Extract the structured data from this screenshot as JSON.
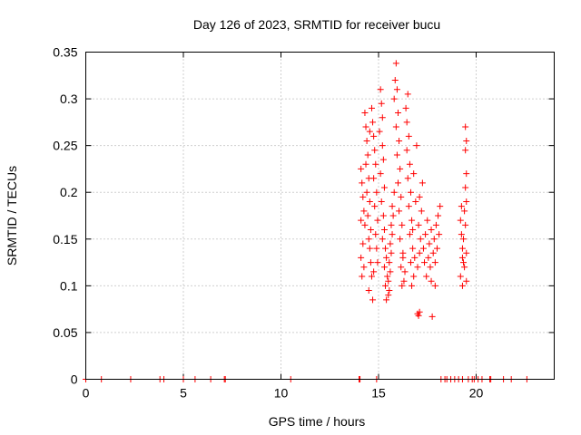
{
  "chart_data": {
    "type": "scatter",
    "title": "Day 126 of 2023, SRMTID for receiver bucu",
    "xlabel": "GPS time / hours",
    "ylabel": "SRMTID / TECUs",
    "xlim": [
      0,
      24
    ],
    "ylim": [
      0,
      0.35
    ],
    "xticks": [
      0,
      5,
      10,
      15,
      20
    ],
    "xtick_labels": [
      "0",
      "5",
      "10",
      "15",
      "20"
    ],
    "yticks": [
      0,
      0.05,
      0.1,
      0.15,
      0.2,
      0.25,
      0.3,
      0.35
    ],
    "ytick_labels": [
      "0",
      "0.05",
      "0.1",
      "0.15",
      "0.2",
      "0.25",
      "0.3",
      "0.35"
    ],
    "grid": true,
    "marker": "+",
    "series": [
      {
        "name": "SRMTID",
        "color": "#ff0000",
        "points": [
          [
            0.0,
            0
          ],
          [
            0.8,
            0
          ],
          [
            2.3,
            0
          ],
          [
            3.8,
            0
          ],
          [
            4.0,
            0
          ],
          [
            5.0,
            0
          ],
          [
            5.6,
            0
          ],
          [
            6.4,
            0
          ],
          [
            7.1,
            0
          ],
          [
            7.15,
            0
          ],
          [
            10.5,
            0
          ],
          [
            14.0,
            0
          ],
          [
            14.05,
            0
          ],
          [
            14.9,
            0
          ],
          [
            18.2,
            0
          ],
          [
            18.4,
            0
          ],
          [
            18.5,
            0
          ],
          [
            18.7,
            0
          ],
          [
            18.9,
            0
          ],
          [
            19.1,
            0
          ],
          [
            19.3,
            0
          ],
          [
            19.6,
            0
          ],
          [
            19.8,
            0
          ],
          [
            19.9,
            0
          ],
          [
            20.1,
            0
          ],
          [
            20.3,
            0
          ],
          [
            20.7,
            0
          ],
          [
            20.75,
            0
          ],
          [
            21.4,
            0
          ],
          [
            21.8,
            0
          ],
          [
            22.6,
            0
          ],
          [
            14.1,
            0.225
          ],
          [
            14.15,
            0.21
          ],
          [
            14.2,
            0.195
          ],
          [
            14.25,
            0.18
          ],
          [
            14.1,
            0.17
          ],
          [
            14.3,
            0.165
          ],
          [
            14.2,
            0.145
          ],
          [
            14.1,
            0.13
          ],
          [
            14.25,
            0.12
          ],
          [
            14.15,
            0.11
          ],
          [
            14.3,
            0.285
          ],
          [
            14.35,
            0.27
          ],
          [
            14.4,
            0.255
          ],
          [
            14.45,
            0.24
          ],
          [
            14.35,
            0.23
          ],
          [
            14.5,
            0.215
          ],
          [
            14.4,
            0.2
          ],
          [
            14.55,
            0.19
          ],
          [
            14.45,
            0.175
          ],
          [
            14.6,
            0.16
          ],
          [
            14.5,
            0.15
          ],
          [
            14.55,
            0.14
          ],
          [
            14.6,
            0.125
          ],
          [
            14.65,
            0.11
          ],
          [
            14.5,
            0.095
          ],
          [
            14.7,
            0.085
          ],
          [
            14.65,
            0.29
          ],
          [
            14.7,
            0.275
          ],
          [
            14.75,
            0.26
          ],
          [
            14.55,
            0.265
          ],
          [
            14.8,
            0.245
          ],
          [
            14.85,
            0.23
          ],
          [
            14.75,
            0.215
          ],
          [
            14.9,
            0.2
          ],
          [
            14.8,
            0.185
          ],
          [
            14.95,
            0.17
          ],
          [
            14.85,
            0.155
          ],
          [
            14.9,
            0.14
          ],
          [
            14.95,
            0.125
          ],
          [
            14.75,
            0.115
          ],
          [
            15.1,
            0.31
          ],
          [
            15.15,
            0.295
          ],
          [
            15.2,
            0.28
          ],
          [
            15.05,
            0.265
          ],
          [
            15.2,
            0.25
          ],
          [
            15.25,
            0.235
          ],
          [
            15.1,
            0.22
          ],
          [
            15.3,
            0.205
          ],
          [
            15.15,
            0.19
          ],
          [
            15.25,
            0.175
          ],
          [
            15.3,
            0.16
          ],
          [
            15.2,
            0.15
          ],
          [
            15.35,
            0.14
          ],
          [
            15.4,
            0.13
          ],
          [
            15.3,
            0.12
          ],
          [
            15.45,
            0.11
          ],
          [
            15.35,
            0.1
          ],
          [
            15.5,
            0.09
          ],
          [
            15.4,
            0.085
          ],
          [
            15.55,
            0.095
          ],
          [
            15.5,
            0.105
          ],
          [
            15.6,
            0.115
          ],
          [
            15.55,
            0.125
          ],
          [
            15.65,
            0.135
          ],
          [
            15.6,
            0.145
          ],
          [
            15.7,
            0.155
          ],
          [
            15.65,
            0.165
          ],
          [
            15.75,
            0.175
          ],
          [
            15.7,
            0.185
          ],
          [
            15.8,
            0.2
          ],
          [
            15.85,
            0.32
          ],
          [
            15.9,
            0.338
          ],
          [
            15.95,
            0.31
          ],
          [
            15.8,
            0.3
          ],
          [
            16.0,
            0.285
          ],
          [
            15.9,
            0.27
          ],
          [
            16.05,
            0.255
          ],
          [
            15.95,
            0.24
          ],
          [
            16.1,
            0.225
          ],
          [
            16.0,
            0.21
          ],
          [
            16.15,
            0.195
          ],
          [
            16.05,
            0.18
          ],
          [
            16.2,
            0.165
          ],
          [
            16.1,
            0.15
          ],
          [
            16.25,
            0.135
          ],
          [
            16.15,
            0.12
          ],
          [
            16.3,
            0.105
          ],
          [
            16.2,
            0.1
          ],
          [
            16.35,
            0.115
          ],
          [
            16.25,
            0.13
          ],
          [
            16.4,
            0.29
          ],
          [
            16.45,
            0.275
          ],
          [
            16.5,
            0.305
          ],
          [
            16.55,
            0.26
          ],
          [
            16.45,
            0.245
          ],
          [
            16.6,
            0.23
          ],
          [
            16.5,
            0.215
          ],
          [
            16.65,
            0.2
          ],
          [
            16.55,
            0.185
          ],
          [
            16.7,
            0.17
          ],
          [
            16.6,
            0.155
          ],
          [
            16.75,
            0.14
          ],
          [
            16.65,
            0.125
          ],
          [
            16.8,
            0.11
          ],
          [
            16.7,
            0.1
          ],
          [
            16.85,
            0.13
          ],
          [
            16.75,
            0.16
          ],
          [
            16.9,
            0.19
          ],
          [
            16.8,
            0.22
          ],
          [
            16.95,
            0.25
          ],
          [
            17.0,
            0.07
          ],
          [
            17.05,
            0.068
          ],
          [
            17.1,
            0.072
          ],
          [
            17.0,
            0.12
          ],
          [
            17.1,
            0.135
          ],
          [
            17.15,
            0.15
          ],
          [
            17.05,
            0.165
          ],
          [
            17.2,
            0.18
          ],
          [
            17.1,
            0.195
          ],
          [
            17.25,
            0.21
          ],
          [
            17.3,
            0.14
          ],
          [
            17.35,
            0.125
          ],
          [
            17.4,
            0.155
          ],
          [
            17.45,
            0.11
          ],
          [
            17.5,
            0.17
          ],
          [
            17.55,
            0.13
          ],
          [
            17.6,
            0.145
          ],
          [
            17.65,
            0.12
          ],
          [
            17.7,
            0.16
          ],
          [
            17.75,
            0.067
          ],
          [
            17.8,
            0.135
          ],
          [
            17.85,
            0.15
          ],
          [
            17.9,
            0.125
          ],
          [
            17.95,
            0.165
          ],
          [
            18.0,
            0.14
          ],
          [
            18.05,
            0.175
          ],
          [
            18.1,
            0.155
          ],
          [
            18.15,
            0.185
          ],
          [
            17.7,
            0.105
          ],
          [
            17.9,
            0.1
          ],
          [
            19.2,
            0.17
          ],
          [
            19.25,
            0.155
          ],
          [
            19.3,
            0.14
          ],
          [
            19.35,
            0.125
          ],
          [
            19.2,
            0.11
          ],
          [
            19.3,
            0.1
          ],
          [
            19.4,
            0.18
          ],
          [
            19.45,
            0.165
          ],
          [
            19.35,
            0.15
          ],
          [
            19.5,
            0.135
          ],
          [
            19.4,
            0.12
          ],
          [
            19.5,
            0.105
          ],
          [
            19.45,
            0.27
          ],
          [
            19.5,
            0.255
          ],
          [
            19.45,
            0.245
          ],
          [
            19.5,
            0.22
          ],
          [
            19.45,
            0.205
          ],
          [
            19.5,
            0.19
          ],
          [
            19.25,
            0.185
          ],
          [
            19.3,
            0.13
          ]
        ]
      }
    ]
  }
}
